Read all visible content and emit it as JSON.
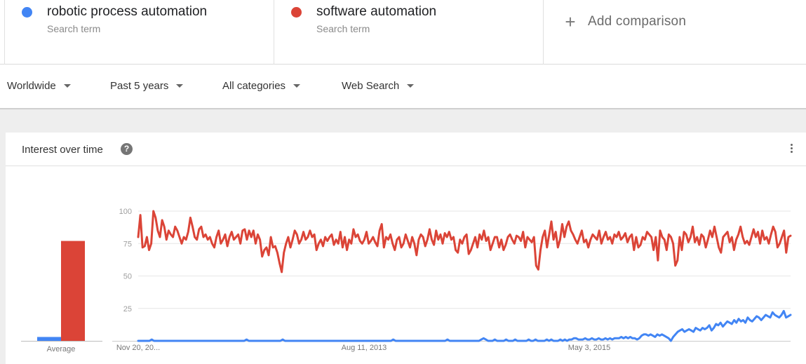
{
  "comparison": {
    "terms": [
      {
        "name": "robotic process automation",
        "subtitle": "Search term",
        "color": "#4285f4"
      },
      {
        "name": "software automation",
        "subtitle": "Search term",
        "color": "#db4437"
      }
    ],
    "add_label": "Add comparison",
    "add_icon": "plus-icon"
  },
  "filters": {
    "region": "Worldwide",
    "time": "Past 5 years",
    "category": "All categories",
    "search_type": "Web Search"
  },
  "card": {
    "title": "Interest over time",
    "help_icon": "help-icon",
    "menu_icon": "more-vert-icon"
  },
  "chart_data": {
    "type": "line",
    "y_ticks": [
      "100",
      "75",
      "50",
      "25"
    ],
    "ylim": [
      0,
      100
    ],
    "x_tick_labels": [
      "Nov 20, 20...",
      "Aug 11, 2013",
      "May 3, 2015"
    ],
    "average_label": "Average",
    "averages": [
      {
        "term": "robotic process automation",
        "value": 3,
        "color": "#4285f4"
      },
      {
        "term": "software automation",
        "value": 77,
        "color": "#db4437"
      }
    ],
    "series": [
      {
        "name": "software automation",
        "color": "#db4437",
        "values": [
          80,
          97,
          72,
          73,
          80,
          70,
          75,
          100,
          95,
          85,
          80,
          93,
          88,
          78,
          85,
          82,
          80,
          88,
          85,
          80,
          75,
          80,
          78,
          84,
          95,
          88,
          80,
          78,
          86,
          88,
          80,
          82,
          78,
          80,
          75,
          72,
          80,
          85,
          75,
          78,
          82,
          73,
          80,
          84,
          78,
          80,
          82,
          75,
          85,
          86,
          78,
          85,
          80,
          85,
          75,
          82,
          78,
          65,
          70,
          72,
          66,
          80,
          72,
          73,
          68,
          60,
          53,
          68,
          75,
          80,
          72,
          78,
          85,
          82,
          75,
          78,
          84,
          78,
          80,
          85,
          80,
          82,
          70,
          75,
          78,
          73,
          80,
          77,
          80,
          82,
          74,
          78,
          75,
          84,
          72,
          80,
          70,
          78,
          75,
          86,
          80,
          82,
          77,
          75,
          78,
          84,
          75,
          77,
          80,
          76,
          73,
          85,
          90,
          72,
          80,
          78,
          82,
          75,
          70,
          78,
          80,
          72,
          75,
          82,
          77,
          72,
          80,
          75,
          66,
          78,
          82,
          80,
          73,
          78,
          86,
          78,
          74,
          85,
          78,
          82,
          75,
          83,
          80,
          84,
          78,
          80,
          70,
          68,
          78,
          75,
          80,
          82,
          67,
          70,
          75,
          80,
          72,
          82,
          78,
          85,
          77,
          80,
          70,
          75,
          80,
          80,
          72,
          78,
          70,
          74,
          80,
          82,
          78,
          75,
          81,
          80,
          77,
          84,
          72,
          80,
          78,
          76,
          80,
          58,
          55,
          70,
          80,
          85,
          72,
          82,
          92,
          78,
          84,
          72,
          78,
          90,
          80,
          88,
          92,
          85,
          82,
          78,
          75,
          80,
          85,
          76,
          78,
          72,
          78,
          82,
          80,
          78,
          85,
          75,
          80,
          84,
          78,
          80,
          75,
          82,
          80,
          84,
          78,
          80,
          83,
          76,
          80,
          82,
          70,
          80,
          72,
          74,
          80,
          78,
          84,
          82,
          80,
          70,
          80,
          62,
          85,
          80,
          78,
          70,
          82,
          80,
          75,
          58,
          62,
          80,
          70,
          84,
          82,
          76,
          80,
          88,
          76,
          80,
          74,
          82,
          80,
          72,
          78,
          85,
          80,
          88,
          80,
          72,
          68,
          80,
          82,
          84,
          76,
          80,
          70,
          78,
          82,
          88,
          80,
          75,
          77,
          74,
          80,
          86,
          80,
          84,
          75,
          85,
          78,
          80,
          75,
          82,
          88,
          84,
          72,
          75,
          80,
          85,
          68,
          80,
          81
        ]
      },
      {
        "name": "robotic process automation",
        "color": "#4285f4",
        "values": [
          0,
          0,
          0,
          0,
          0,
          0,
          1,
          0,
          0,
          0,
          0,
          0,
          0,
          0,
          0,
          0,
          0,
          0,
          0,
          0,
          0,
          0,
          0,
          0,
          0,
          0,
          0,
          0,
          0,
          0,
          0,
          0,
          0,
          0,
          0,
          0,
          0,
          0,
          0,
          0,
          0,
          0,
          0,
          0,
          0,
          0,
          0,
          0,
          1,
          0,
          0,
          0,
          0,
          0,
          0,
          0,
          0,
          0,
          0,
          0,
          0,
          0,
          0,
          0,
          1,
          0,
          0,
          0,
          0,
          0,
          0,
          0,
          0,
          0,
          0,
          0,
          0,
          0,
          0,
          0,
          0,
          0,
          0,
          0,
          0,
          0,
          0,
          0,
          0,
          0,
          0,
          0,
          0,
          0,
          0,
          0,
          0,
          0,
          0,
          0,
          0,
          0,
          0,
          0,
          0,
          0,
          0,
          0,
          0,
          0,
          0,
          0,
          0,
          1,
          0,
          0,
          0,
          0,
          0,
          0,
          0,
          0,
          0,
          0,
          0,
          0,
          0,
          0,
          0,
          0,
          0,
          0,
          0,
          0,
          0,
          0,
          0,
          1,
          0,
          0,
          0,
          0,
          0,
          0,
          0,
          0,
          0,
          0,
          0,
          0,
          0,
          0,
          1,
          2,
          1,
          0,
          0,
          0,
          1,
          0,
          0,
          0,
          0,
          1,
          0,
          0,
          0,
          1,
          0,
          0,
          0,
          0,
          0,
          1,
          0,
          0,
          1,
          0,
          0,
          0,
          0,
          1,
          0,
          1,
          0,
          0,
          0,
          1,
          0,
          1,
          0,
          1,
          1,
          2,
          2,
          1,
          1,
          1,
          2,
          1,
          1,
          2,
          1,
          1,
          2,
          1,
          1,
          2,
          1,
          2,
          1,
          2,
          2,
          2,
          3,
          2,
          3,
          2,
          3,
          2,
          2,
          1,
          2,
          4,
          5,
          5,
          4,
          5,
          4,
          3,
          5,
          4,
          5,
          4,
          3,
          2,
          0,
          3,
          5,
          7,
          8,
          9,
          7,
          8,
          9,
          8,
          7,
          10,
          9,
          8,
          10,
          9,
          10,
          12,
          8,
          10,
          13,
          12,
          14,
          11,
          13,
          15,
          14,
          13,
          16,
          14,
          17,
          15,
          16,
          14,
          18,
          16,
          15,
          17,
          19,
          18,
          16,
          18,
          20,
          19,
          18,
          22,
          20,
          19,
          18,
          20,
          23,
          18,
          19,
          20
        ]
      }
    ]
  }
}
